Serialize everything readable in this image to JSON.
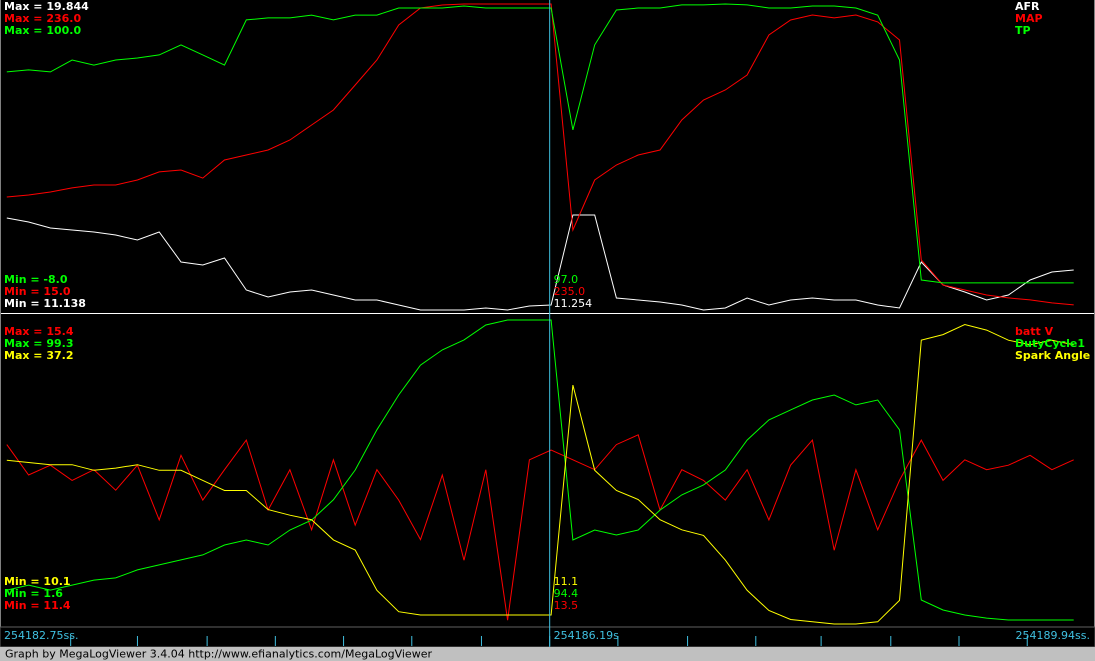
{
  "chart_data": {
    "type": "line",
    "footer": "Graph by MegaLogViewer 3.4.04 http://www.efianalytics.com/MegaLogViewer",
    "x": [
      254182.45,
      254182.6,
      254182.75,
      254182.9,
      254183.05,
      254183.2,
      254183.35,
      254183.5,
      254183.65,
      254183.8,
      254183.95,
      254184.1,
      254184.25,
      254184.4,
      254184.55,
      254184.7,
      254184.85,
      254185.0,
      254185.15,
      254185.3,
      254185.45,
      254185.6,
      254185.75,
      254185.9,
      254186.05,
      254186.2,
      254186.35,
      254186.5,
      254186.65,
      254186.8,
      254186.95,
      254187.1,
      254187.25,
      254187.4,
      254187.55,
      254187.7,
      254187.85,
      254188.0,
      254188.15,
      254188.3,
      254188.45,
      254188.6,
      254188.75,
      254188.9,
      254189.05,
      254189.2,
      254189.35,
      254189.5,
      254189.65,
      254189.8
    ],
    "xlim": [
      254182.41,
      254189.94
    ],
    "xticks": [
      254182.89,
      254183.35,
      254183.83,
      254184.3,
      254184.77,
      254185.24,
      254185.72,
      254186.19,
      254186.66,
      254187.14,
      254187.61,
      254188.06,
      254188.54,
      254189.01,
      254189.48
    ],
    "x_labels": [
      "254182.75ss.",
      "254186.19s",
      "254189.94ss."
    ],
    "cursor_x": 254186.19,
    "panels": [
      {
        "series": [
          {
            "name": "AFR",
            "color": "#ffffff",
            "ylim": [
              11.138,
              19.844
            ],
            "max_label": "Max = 19.844",
            "min_label": "Min = 11.138",
            "cursor_label": "11.254",
            "values": [
              13.775,
              13.662,
              13.492,
              13.435,
              13.378,
              13.293,
              13.152,
              13.378,
              12.528,
              12.443,
              12.642,
              11.734,
              11.535,
              11.677,
              11.734,
              11.592,
              11.45,
              11.45,
              11.308,
              11.166,
              11.166,
              11.166,
              11.223,
              11.166,
              11.28,
              11.308,
              13.861,
              13.861,
              11.507,
              11.45,
              11.393,
              11.308,
              11.166,
              11.223,
              11.507,
              11.308,
              11.45,
              11.507,
              11.45,
              11.45,
              11.308,
              11.223,
              12.528,
              11.875,
              11.677,
              11.45,
              11.592,
              12.017,
              12.244,
              12.301
            ]
          },
          {
            "name": "MAP",
            "color": "#ff0000",
            "ylim": [
              15.0,
              236.0
            ],
            "max_label": "Max = 236.0",
            "min_label": "Min = 15.0",
            "cursor_label": "235.0",
            "values": [
              97.1,
              98.5,
              100.7,
              103.6,
              105.7,
              105.7,
              109.3,
              115.1,
              116.5,
              110.7,
              123.7,
              127.3,
              130.9,
              138.1,
              148.9,
              159.7,
              177.7,
              195.7,
              220.9,
              233.1,
              235.3,
              236.0,
              236.0,
              236.0,
              236.0,
              236.0,
              73.3,
              109.3,
              120.1,
              127.3,
              130.9,
              152.5,
              166.9,
              174.1,
              184.9,
              213.7,
              224.5,
              228.1,
              226.0,
              228.1,
              223.1,
              210.1,
              51.7,
              33.7,
              30.1,
              26.5,
              24.4,
              23.0,
              20.8,
              19.4
            ]
          },
          {
            "name": "TP",
            "color": "#00ff00",
            "ylim": [
              -8.0,
              100.0
            ],
            "max_label": "Max = 100.0",
            "min_label": "Min = -8.0",
            "cursor_label": "97.0",
            "values": [
              76.1,
              76.8,
              76.1,
              80.3,
              78.5,
              80.3,
              81.0,
              82.1,
              85.6,
              82.1,
              78.5,
              94.4,
              95.1,
              95.1,
              96.1,
              94.4,
              96.1,
              96.1,
              98.6,
              98.6,
              98.6,
              99.3,
              98.6,
              98.6,
              98.6,
              98.6,
              55.7,
              85.6,
              97.9,
              98.6,
              98.6,
              99.7,
              99.7,
              100,
              99.7,
              98.6,
              98.6,
              99.3,
              99.3,
              98.6,
              96.1,
              80.3,
              2.9,
              1.9,
              1.9,
              1.9,
              1.9,
              1.9,
              1.9,
              1.9
            ]
          }
        ]
      },
      {
        "series": [
          {
            "name": "batt V",
            "color": "#ff0000",
            "ylim": [
              11.4,
              15.4
            ],
            "max_label": "Max = 15.4",
            "min_label": "Min = 11.4",
            "cursor_label": "13.5",
            "values": [
              13.76,
              13.36,
              13.49,
              13.29,
              13.43,
              13.16,
              13.49,
              12.77,
              13.62,
              13.03,
              13.43,
              13.82,
              12.9,
              13.43,
              12.64,
              13.56,
              12.7,
              13.43,
              13.03,
              12.51,
              13.36,
              12.24,
              13.43,
              11.45,
              13.56,
              13.69,
              13.56,
              13.43,
              13.76,
              13.89,
              12.9,
              13.43,
              13.29,
              13.03,
              13.43,
              12.77,
              13.49,
              13.82,
              12.37,
              13.43,
              12.64,
              13.29,
              13.82,
              13.29,
              13.56,
              13.43,
              13.49,
              13.62,
              13.43,
              13.56
            ]
          },
          {
            "name": "DutyCycle1",
            "color": "#00ff00",
            "ylim": [
              1.6,
              99.3
            ],
            "max_label": "Max = 99.3",
            "min_label": "Min = 1.6",
            "cursor_label": "94.4",
            "values": [
              12.5,
              14.1,
              12.5,
              14.1,
              15.7,
              16.4,
              19.0,
              20.6,
              22.2,
              23.8,
              27.0,
              28.6,
              27.0,
              31.8,
              35.0,
              41.5,
              51.1,
              64.0,
              75.2,
              84.8,
              89.7,
              92.9,
              97.7,
              99.3,
              99.3,
              99.3,
              28.6,
              31.8,
              30.2,
              31.8,
              38.2,
              43.1,
              46.3,
              51.1,
              60.7,
              67.2,
              70.4,
              73.6,
              75.2,
              72.0,
              73.6,
              64.0,
              9.3,
              6.1,
              4.5,
              3.5,
              2.9,
              2.9,
              2.9,
              2.9
            ]
          },
          {
            "name": "Spark Angle",
            "color": "#ffff00",
            "ylim": [
              10.1,
              37.2
            ],
            "max_label": "Max = 37.2",
            "min_label": "Min = 10.1",
            "cursor_label": "11.1",
            "values": [
              24.7,
              24.5,
              24.3,
              24.3,
              23.8,
              24.0,
              24.3,
              23.8,
              23.8,
              22.9,
              22.0,
              22.0,
              20.3,
              19.8,
              19.4,
              17.6,
              16.7,
              13.1,
              11.2,
              10.9,
              10.9,
              10.9,
              10.9,
              10.9,
              10.9,
              10.9,
              31.4,
              23.8,
              22.0,
              21.2,
              19.4,
              18.5,
              18.0,
              15.8,
              13.1,
              11.3,
              10.5,
              10.3,
              10.1,
              10.1,
              10.3,
              12.2,
              35.4,
              35.9,
              36.8,
              36.3,
              35.4,
              35.0,
              35.4,
              35.0
            ]
          }
        ]
      }
    ]
  }
}
